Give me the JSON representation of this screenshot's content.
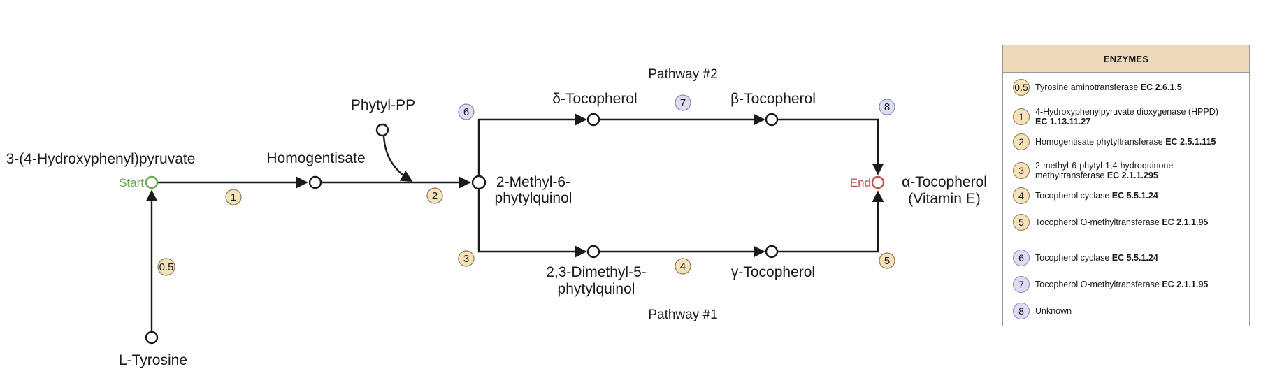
{
  "nodes": {
    "start_label": "Start",
    "end_label": "End",
    "hydroxyphenylpyruvate": "3-(4-Hydroxyphenyl)pyruvate",
    "l_tyrosine": "L-Tyrosine",
    "homogentisate": "Homogentisate",
    "phytyl_pp": "Phytyl-PP",
    "methyl_phytylquinol_line1": "2-Methyl-6-",
    "methyl_phytylquinol_line2": "phytylquinol",
    "delta_tocopherol": "δ-Tocopherol",
    "beta_tocopherol": "β-Tocopherol",
    "dimethyl_phytylquinol_line1": "2,3-Dimethyl-5-",
    "dimethyl_phytylquinol_line2": "phytylquinol",
    "gamma_tocopherol": "γ-Tocopherol",
    "alpha_tocopherol_line1": "α-Tocopherol",
    "alpha_tocopherol_line2": "(Vitamin E)"
  },
  "pathways": {
    "pathway_2": "Pathway #2",
    "pathway_1": "Pathway #1"
  },
  "badges": {
    "b05": "0.5",
    "b1": "1",
    "b2": "2",
    "b3": "3",
    "b4": "4",
    "b5": "5",
    "b6": "6",
    "b7": "7",
    "b8": "8"
  },
  "colors": {
    "start": "#6aa84f",
    "end": "#c0504d",
    "enzyme_yellow": "#f6e2b8",
    "enzyme_purple": "#dcdcf2",
    "legend_header": "#ecd9b9"
  },
  "legend": {
    "title": "ENZYMES",
    "items": [
      {
        "badge": "0.5",
        "name": "Tyrosine aminotransferase",
        "ec": "EC 2.6.1.5"
      },
      {
        "badge": "1",
        "name": "4-Hydroxyphenylpyruvate dioxygenase (HPPD)",
        "ec": "EC 1.13.11.27"
      },
      {
        "badge": "2",
        "name": "Homogentisate phytyltransferase",
        "ec": "EC 2.5.1.115"
      },
      {
        "badge": "3",
        "name_line1": "2-methyl-6-phytyl-1,4-hydroquinone",
        "name_line2": "methyltransferase",
        "ec": "EC 2.1.1.295"
      },
      {
        "badge": "4",
        "name": "Tocopherol cyclase",
        "ec": "EC 5.5.1.24"
      },
      {
        "badge": "5",
        "name": "Tocopherol O-methyltransferase",
        "ec": "EC 2.1.1.95"
      },
      {
        "badge": "6",
        "name": "Tocopherol cyclase",
        "ec": "EC 5.5.1.24"
      },
      {
        "badge": "7",
        "name": "Tocopherol O-methyltransferase",
        "ec": "EC 2.1.1.95"
      },
      {
        "badge": "8",
        "name": "Unknown"
      }
    ]
  }
}
